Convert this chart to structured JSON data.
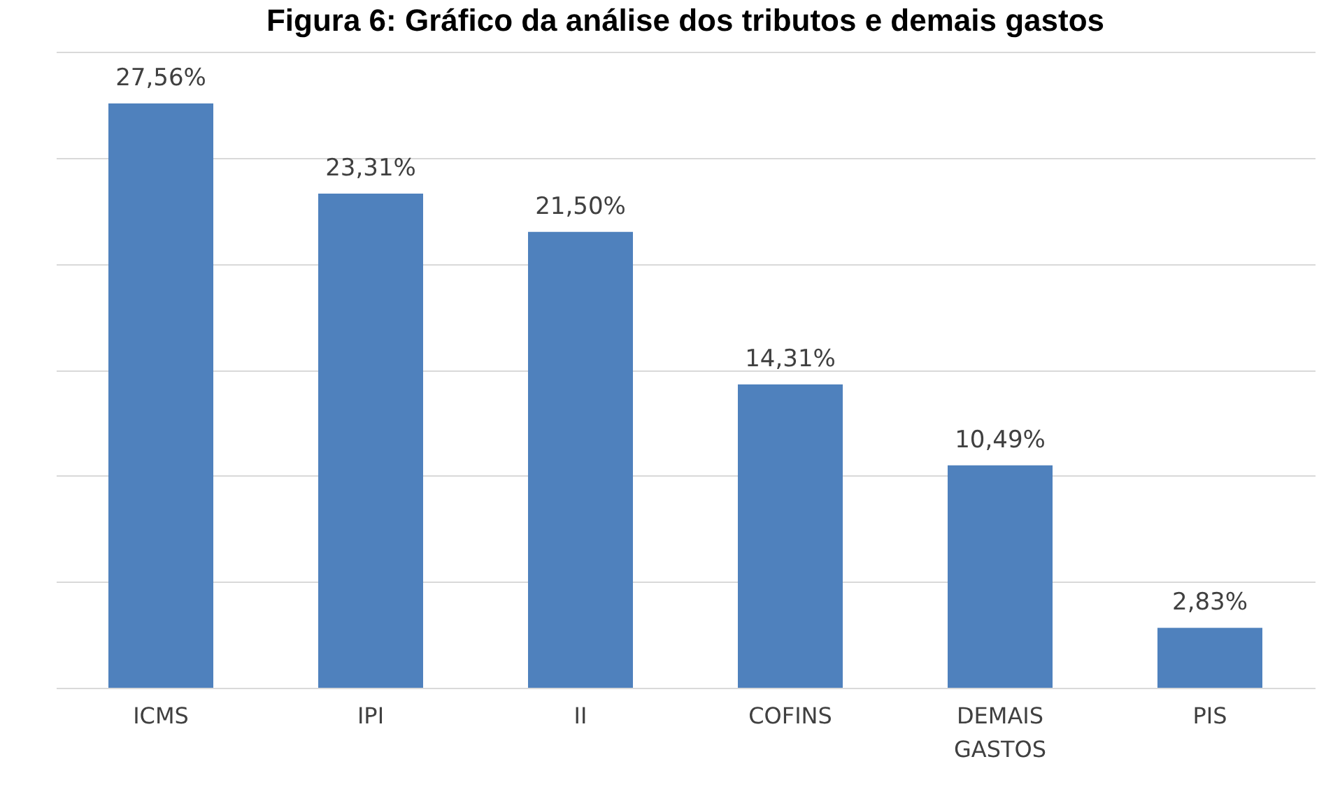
{
  "chart_data": {
    "type": "bar",
    "title": "Figura 6: Gráfico da análise dos tributos e demais gastos",
    "categories": [
      "ICMS",
      "IPI",
      "II",
      "COFINS",
      "DEMAIS GASTOS",
      "PIS"
    ],
    "values": [
      27.56,
      23.31,
      21.5,
      14.31,
      10.49,
      2.83
    ],
    "value_labels": [
      "27,56%",
      "23,31%",
      "21,50%",
      "14,31%",
      "10,49%",
      "2,83%"
    ],
    "color": "#4f81bd",
    "ylim": [
      0,
      30
    ],
    "yticks": [
      {
        "value": 0,
        "label": null
      },
      {
        "value": 5,
        "label": null
      },
      {
        "value": 10,
        "label": null
      },
      {
        "value": 15,
        "label": null
      },
      {
        "value": 20,
        "label": null
      },
      {
        "value": 25,
        "label": null
      },
      {
        "value": 30,
        "label": null
      }
    ],
    "grid": "y",
    "tick_labels": "x"
  }
}
